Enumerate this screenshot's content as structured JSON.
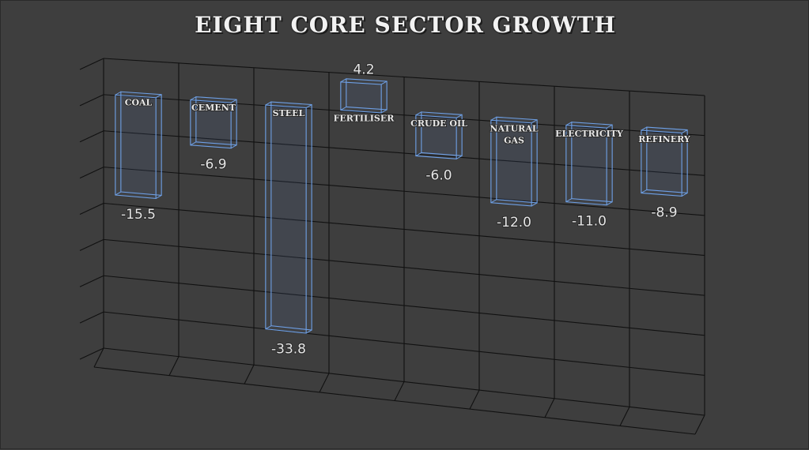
{
  "chart_data": {
    "type": "bar",
    "title": "EIGHT CORE SECTOR GROWTH",
    "categories": [
      "COAL",
      "CEMENT",
      "STEEL",
      "FERTILISER",
      "CRUDE OIL",
      "NATURAL GAS",
      "ELECTRICITY",
      "REFINERY"
    ],
    "values": [
      -15.5,
      -6.9,
      -33.8,
      4.2,
      -6.0,
      -12.0,
      -11.0,
      -8.9
    ],
    "value_labels": [
      "-15.5",
      "-6.9",
      "-33.8",
      "4.2",
      "-6.0",
      "-12.0",
      "-11.0",
      "-8.9"
    ],
    "xlabel": "",
    "ylabel": "",
    "grid": true,
    "legend": "none",
    "style": "3d-wireframe",
    "colors": {
      "background": "#3e3e3e",
      "bar_outline": "#6ea0e6",
      "grid": "#111111",
      "text": "#e8e8e8"
    }
  }
}
